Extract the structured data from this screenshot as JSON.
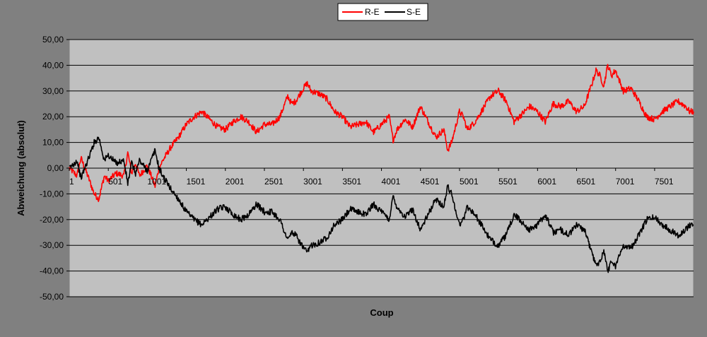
{
  "chart_data": {
    "type": "line",
    "title": "",
    "xlabel": "Coup",
    "ylabel": "Abweichung (absolut)",
    "ylim": [
      -50,
      50
    ],
    "xlim": [
      1,
      8000
    ],
    "y_ticks": [
      50,
      40,
      30,
      20,
      10,
      0,
      -10,
      -20,
      -30,
      -40,
      -50
    ],
    "y_tick_labels": [
      "50,00",
      "40,00",
      "30,00",
      "20,00",
      "10,00",
      "0,00",
      "-10,00",
      "-20,00",
      "-30,00",
      "-40,00",
      "-50,00"
    ],
    "x_ticks": [
      1,
      501,
      1001,
      1501,
      2001,
      2501,
      3001,
      3501,
      4001,
      4501,
      5001,
      5501,
      6001,
      6501,
      7001,
      7501
    ],
    "x_tick_labels": [
      "1",
      "501",
      "1001",
      "1501",
      "2001",
      "2501",
      "3001",
      "3501",
      "4001",
      "4501",
      "5001",
      "5501",
      "6001",
      "6501",
      "7001",
      "7501"
    ],
    "grid": "horizontal major gridlines",
    "legend_position": "top",
    "series": [
      {
        "name": "R-E",
        "color": "#FF0000",
        "x": [
          1,
          100,
          150,
          250,
          320,
          380,
          450,
          500,
          600,
          700,
          750,
          800,
          850,
          900,
          1000,
          1100,
          1150,
          1200,
          1300,
          1400,
          1500,
          1600,
          1700,
          1800,
          1900,
          2000,
          2100,
          2200,
          2300,
          2400,
          2500,
          2600,
          2700,
          2800,
          2850,
          2900,
          3000,
          3050,
          3100,
          3200,
          3300,
          3400,
          3500,
          3600,
          3700,
          3800,
          3900,
          4000,
          4100,
          4150,
          4200,
          4300,
          4400,
          4500,
          4600,
          4700,
          4800,
          4850,
          4900,
          5000,
          5050,
          5100,
          5200,
          5300,
          5400,
          5500,
          5600,
          5700,
          5800,
          5900,
          6000,
          6100,
          6200,
          6300,
          6400,
          6500,
          6600,
          6700,
          6750,
          6800,
          6850,
          6900,
          6950,
          7000,
          7100,
          7200,
          7300,
          7400,
          7500,
          7600,
          7700,
          7800,
          7900,
          7950,
          8000
        ],
        "y": [
          0,
          -3,
          4,
          -4,
          -10,
          -12,
          -3,
          -5,
          -2,
          -3,
          6,
          -2,
          2,
          -3,
          1,
          -7,
          0,
          3,
          8,
          12,
          17,
          20,
          22,
          19,
          16,
          15,
          18,
          20,
          18,
          14,
          17,
          17,
          20,
          28,
          25,
          26,
          31,
          33,
          30,
          29,
          27,
          22,
          20,
          16,
          17,
          18,
          14,
          17,
          20,
          11,
          15,
          19,
          16,
          24,
          18,
          12,
          15,
          7,
          10,
          22,
          20,
          15,
          18,
          23,
          28,
          30,
          26,
          18,
          21,
          24,
          22,
          18,
          25,
          24,
          26,
          22,
          24,
          33,
          38,
          36,
          32,
          40,
          36,
          38,
          30,
          31,
          26,
          20,
          19,
          22,
          24,
          26,
          24,
          22,
          22
        ]
      },
      {
        "name": "S-E",
        "color": "#000000",
        "x": [
          1,
          100,
          150,
          250,
          320,
          380,
          450,
          500,
          600,
          700,
          750,
          800,
          850,
          900,
          1000,
          1100,
          1150,
          1200,
          1300,
          1400,
          1500,
          1600,
          1700,
          1800,
          1900,
          2000,
          2100,
          2200,
          2300,
          2400,
          2500,
          2600,
          2700,
          2800,
          2850,
          2900,
          3000,
          3050,
          3100,
          3200,
          3300,
          3400,
          3500,
          3600,
          3700,
          3800,
          3900,
          4000,
          4100,
          4150,
          4200,
          4300,
          4400,
          4500,
          4600,
          4700,
          4800,
          4850,
          4900,
          5000,
          5050,
          5100,
          5200,
          5300,
          5400,
          5500,
          5600,
          5700,
          5800,
          5900,
          6000,
          6100,
          6200,
          6300,
          6400,
          6500,
          6600,
          6700,
          6750,
          6800,
          6850,
          6900,
          6950,
          7000,
          7100,
          7200,
          7300,
          7400,
          7500,
          7600,
          7700,
          7800,
          7900,
          7950,
          8000
        ],
        "y": [
          0,
          3,
          -4,
          4,
          10,
          12,
          3,
          5,
          2,
          3,
          -6,
          2,
          -2,
          3,
          -1,
          7,
          0,
          -3,
          -8,
          -12,
          -17,
          -20,
          -22,
          -19,
          -16,
          -15,
          -18,
          -20,
          -18,
          -14,
          -17,
          -17,
          -20,
          -28,
          -25,
          -26,
          -31,
          -33,
          -30,
          -29,
          -27,
          -22,
          -20,
          -16,
          -17,
          -18,
          -14,
          -17,
          -20,
          -11,
          -15,
          -19,
          -16,
          -24,
          -18,
          -12,
          -15,
          -7,
          -10,
          -22,
          -20,
          -15,
          -18,
          -23,
          -28,
          -30,
          -26,
          -18,
          -21,
          -24,
          -22,
          -18,
          -25,
          -24,
          -26,
          -22,
          -24,
          -33,
          -38,
          -36,
          -32,
          -40,
          -36,
          -38,
          -30,
          -31,
          -26,
          -20,
          -19,
          -22,
          -24,
          -26,
          -24,
          -22,
          -22
        ]
      }
    ]
  }
}
